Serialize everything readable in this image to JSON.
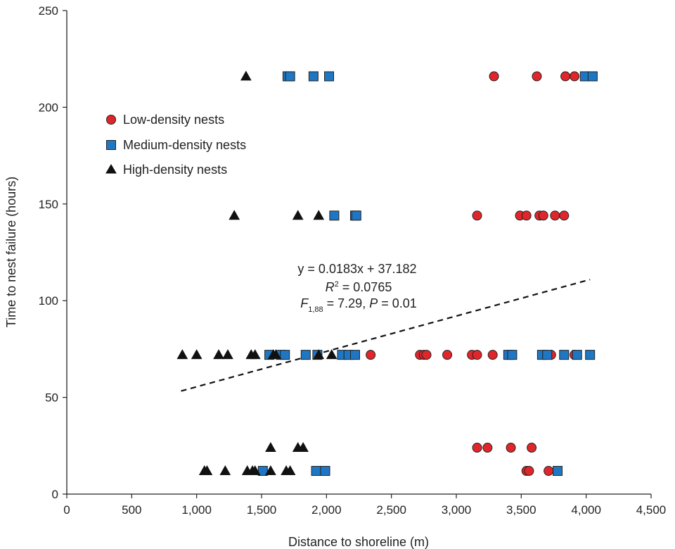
{
  "chart_data": {
    "type": "scatter",
    "xlabel": "Distance to shoreline (m)",
    "ylabel": "Time to nest failure (hours)",
    "xlim": [
      0,
      4500
    ],
    "ylim": [
      0,
      250
    ],
    "x_ticks": [
      0,
      500,
      1000,
      1500,
      2000,
      2500,
      3000,
      3500,
      4000,
      4500
    ],
    "x_tick_labels": [
      "0",
      "500",
      "1,000",
      "1,500",
      "2,000",
      "2,500",
      "3,000",
      "3,500",
      "4,000",
      "4,500"
    ],
    "y_ticks": [
      0,
      50,
      100,
      150,
      200,
      250
    ],
    "y_tick_labels": [
      "0",
      "50",
      "100",
      "150",
      "200",
      "250"
    ],
    "grid": false,
    "legend_position": "top-left",
    "series": [
      {
        "name": "Low-density nests",
        "marker": "circle",
        "color": "#e0262b",
        "points": [
          [
            3290,
            216
          ],
          [
            3620,
            216
          ],
          [
            3840,
            216
          ],
          [
            3910,
            216
          ],
          [
            3160,
            144
          ],
          [
            3490,
            144
          ],
          [
            3540,
            144
          ],
          [
            3640,
            144
          ],
          [
            3670,
            144
          ],
          [
            3760,
            144
          ],
          [
            3830,
            144
          ],
          [
            2340,
            72
          ],
          [
            2720,
            72
          ],
          [
            2750,
            72
          ],
          [
            2770,
            72
          ],
          [
            2930,
            72
          ],
          [
            3120,
            72
          ],
          [
            3160,
            72
          ],
          [
            3280,
            72
          ],
          [
            3730,
            72
          ],
          [
            3910,
            72
          ],
          [
            3160,
            24
          ],
          [
            3240,
            24
          ],
          [
            3420,
            24
          ],
          [
            3580,
            24
          ],
          [
            3540,
            12
          ],
          [
            3560,
            12
          ],
          [
            3710,
            12
          ]
        ]
      },
      {
        "name": "Medium-density nests",
        "marker": "square",
        "color": "#1f77c4",
        "points": [
          [
            1700,
            216
          ],
          [
            1720,
            216
          ],
          [
            1900,
            216
          ],
          [
            2020,
            216
          ],
          [
            3990,
            216
          ],
          [
            4050,
            216
          ],
          [
            2060,
            144
          ],
          [
            2220,
            144
          ],
          [
            2230,
            144
          ],
          [
            1560,
            72
          ],
          [
            1650,
            72
          ],
          [
            1680,
            72
          ],
          [
            1840,
            72
          ],
          [
            1930,
            72
          ],
          [
            2120,
            72
          ],
          [
            2170,
            72
          ],
          [
            2220,
            72
          ],
          [
            3400,
            72
          ],
          [
            3430,
            72
          ],
          [
            3660,
            72
          ],
          [
            3700,
            72
          ],
          [
            3830,
            72
          ],
          [
            3930,
            72
          ],
          [
            4030,
            72
          ],
          [
            1510,
            12
          ],
          [
            1920,
            12
          ],
          [
            1990,
            12
          ],
          [
            3780,
            12
          ]
        ]
      },
      {
        "name": "High-density nests",
        "marker": "triangle",
        "color": "#111111",
        "points": [
          [
            1380,
            216
          ],
          [
            1290,
            144
          ],
          [
            1780,
            144
          ],
          [
            1940,
            144
          ],
          [
            890,
            72
          ],
          [
            1000,
            72
          ],
          [
            1170,
            72
          ],
          [
            1240,
            72
          ],
          [
            1420,
            72
          ],
          [
            1450,
            72
          ],
          [
            1590,
            72
          ],
          [
            1610,
            72
          ],
          [
            1940,
            72
          ],
          [
            2040,
            72
          ],
          [
            1570,
            24
          ],
          [
            1780,
            24
          ],
          [
            1820,
            24
          ],
          [
            1060,
            12
          ],
          [
            1080,
            12
          ],
          [
            1220,
            12
          ],
          [
            1390,
            12
          ],
          [
            1430,
            12
          ],
          [
            1450,
            12
          ],
          [
            1570,
            12
          ],
          [
            1690,
            12
          ],
          [
            1720,
            12
          ]
        ]
      }
    ],
    "trendline": {
      "style": "dashed",
      "x_range": [
        880,
        4030
      ],
      "slope": 0.0183,
      "intercept": 37.182
    },
    "annotation": {
      "line1": "y = 0.0183x + 37.182",
      "r_label": "R",
      "r_sup": "2",
      "r_rest": " = 0.0765",
      "f_label": "F",
      "f_sub": "1,88",
      "f_rest": " = 7.29, ",
      "p_label": "P",
      "p_rest": " = 0.01"
    }
  }
}
